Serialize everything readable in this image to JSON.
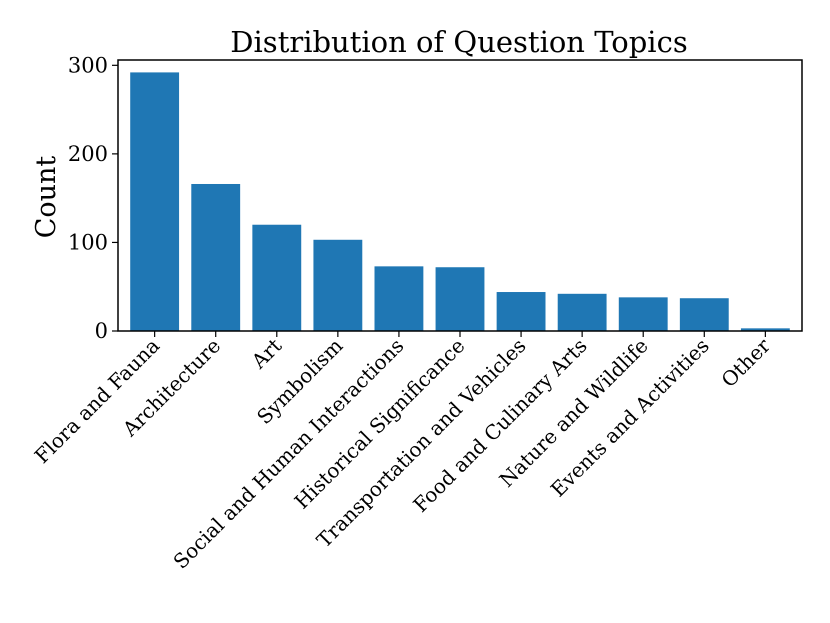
{
  "chart_data": {
    "type": "bar",
    "title": "Distribution of Question Topics",
    "xlabel": "",
    "ylabel": "Count",
    "categories": [
      "Flora and Fauna",
      "Architecture",
      "Art",
      "Symbolism",
      "Social and Human Interactions",
      "Historical Significance",
      "Transportation and Vehicles",
      "Food and Culinary Arts",
      "Nature and Wildlife",
      "Events and Activities",
      "Other"
    ],
    "values": [
      292,
      166,
      120,
      103,
      73,
      72,
      44,
      42,
      38,
      37,
      3
    ],
    "ylim": [
      0,
      306
    ],
    "yticks": [
      0,
      100,
      200,
      300
    ],
    "bar_color": "#1f77b4",
    "grid": false,
    "legend": false
  }
}
